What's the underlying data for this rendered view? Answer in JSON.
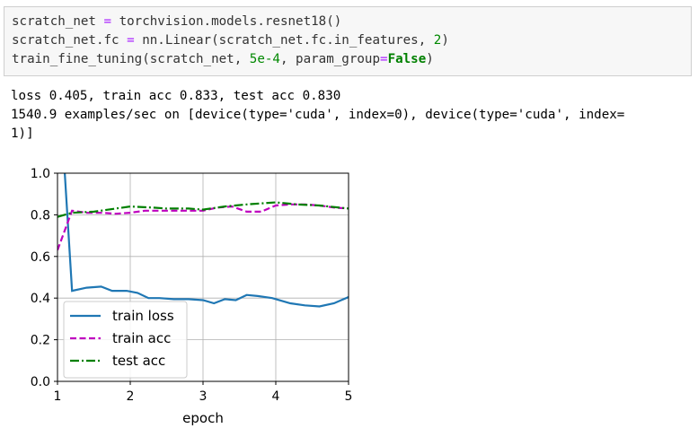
{
  "code_cell": {
    "line1": {
      "a": "scratch_net ",
      "op": "=",
      "b": " torchvision.models.resnet18()"
    },
    "line2": {
      "a": "scratch_net.fc ",
      "op": "=",
      "b": " nn.Linear(scratch_net.fc.in_features, ",
      "num": "2",
      "c": ")"
    },
    "line3": {
      "a": "train_fine_tuning(scratch_net, ",
      "num": "5e-4",
      "b": ", param_group",
      "op": "=",
      "kw": "False",
      "c": ")"
    }
  },
  "output": {
    "line1": "loss 0.405, train acc 0.833, test acc 0.830",
    "line2": "1540.9 examples/sec on [device(type='cuda', index=0), device(type='cuda', index=",
    "line3": "1)]"
  },
  "chart_data": {
    "type": "line",
    "xlabel": "epoch",
    "ylabel": "",
    "xlim": [
      1,
      5
    ],
    "ylim": [
      0.0,
      1.0
    ],
    "xticks": [
      "1",
      "2",
      "3",
      "4",
      "5"
    ],
    "yticks": [
      "0.0",
      "0.2",
      "0.4",
      "0.6",
      "0.8",
      "1.0"
    ],
    "grid": true,
    "legend_position": "lower-left",
    "series": [
      {
        "name": "train loss",
        "color": "#1f77b4",
        "dash": "solid",
        "x": [
          1.1,
          1.2,
          1.4,
          1.6,
          1.75,
          1.95,
          2.1,
          2.25,
          2.4,
          2.6,
          2.8,
          3.0,
          3.15,
          3.3,
          3.45,
          3.6,
          3.75,
          3.95,
          4.2,
          4.4,
          4.6,
          4.8,
          5.0
        ],
        "y": [
          1.0,
          0.435,
          0.45,
          0.455,
          0.435,
          0.435,
          0.425,
          0.4,
          0.4,
          0.395,
          0.395,
          0.39,
          0.375,
          0.395,
          0.39,
          0.415,
          0.41,
          0.4,
          0.375,
          0.365,
          0.36,
          0.375,
          0.405
        ]
      },
      {
        "name": "train acc",
        "color": "#bf00bf",
        "dash": "dashed",
        "x": [
          1.0,
          1.2,
          1.4,
          1.6,
          1.8,
          2.0,
          2.2,
          2.4,
          2.6,
          2.8,
          3.0,
          3.2,
          3.4,
          3.6,
          3.8,
          4.0,
          4.2,
          4.4,
          4.6,
          4.8,
          5.0
        ],
        "y": [
          0.63,
          0.82,
          0.81,
          0.81,
          0.805,
          0.81,
          0.82,
          0.82,
          0.82,
          0.82,
          0.82,
          0.835,
          0.84,
          0.815,
          0.815,
          0.845,
          0.85,
          0.85,
          0.845,
          0.835,
          0.83
        ]
      },
      {
        "name": "test acc",
        "color": "#008000",
        "dash": "dashdot",
        "x": [
          1.0,
          1.2,
          1.5,
          2.0,
          2.3,
          2.5,
          2.8,
          3.0,
          3.3,
          3.6,
          4.0,
          4.3,
          4.6,
          5.0
        ],
        "y": [
          0.79,
          0.81,
          0.815,
          0.84,
          0.835,
          0.83,
          0.83,
          0.825,
          0.84,
          0.85,
          0.86,
          0.85,
          0.845,
          0.83
        ]
      }
    ]
  }
}
